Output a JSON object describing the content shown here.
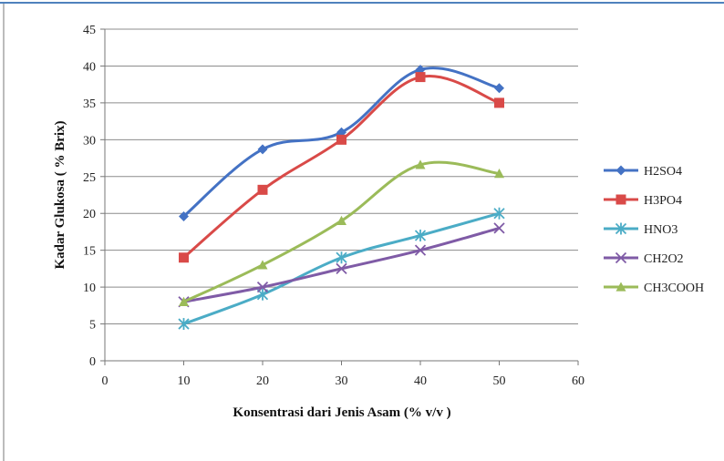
{
  "chart_data": {
    "type": "line",
    "smooth": true,
    "title": "",
    "xlabel": "Konsentrasi dari Jenis Asam (% v/v )",
    "ylabel": "Kadar Glukosa ( % Brix)",
    "xlim": [
      0,
      60
    ],
    "ylim": [
      0,
      45
    ],
    "xticks": [
      0,
      10,
      20,
      30,
      40,
      50,
      60
    ],
    "yticks": [
      0,
      5,
      10,
      15,
      20,
      25,
      30,
      35,
      40,
      45
    ],
    "grid": "horizontal",
    "legend_position": "right",
    "x": [
      10,
      20,
      30,
      40,
      50
    ],
    "series": [
      {
        "name": "H2SO4",
        "values": [
          19.6,
          28.7,
          31.0,
          39.5,
          37.0
        ],
        "color": "#4472C4",
        "marker": "diamond"
      },
      {
        "name": "H3PO4",
        "values": [
          14.0,
          23.2,
          30.0,
          38.5,
          35.0
        ],
        "color": "#D94A48",
        "marker": "square"
      },
      {
        "name": "HNO3",
        "values": [
          5.0,
          9.0,
          14.0,
          17.0,
          20.0
        ],
        "color": "#4BACC6",
        "marker": "star"
      },
      {
        "name": "CH2O2",
        "values": [
          8.0,
          10.0,
          12.5,
          15.0,
          18.0
        ],
        "color": "#7F5BA6",
        "marker": "x"
      },
      {
        "name": "CH3COOH",
        "values": [
          8.0,
          13.0,
          19.0,
          26.6,
          25.4
        ],
        "color": "#9BBB59",
        "marker": "triangle"
      }
    ]
  }
}
